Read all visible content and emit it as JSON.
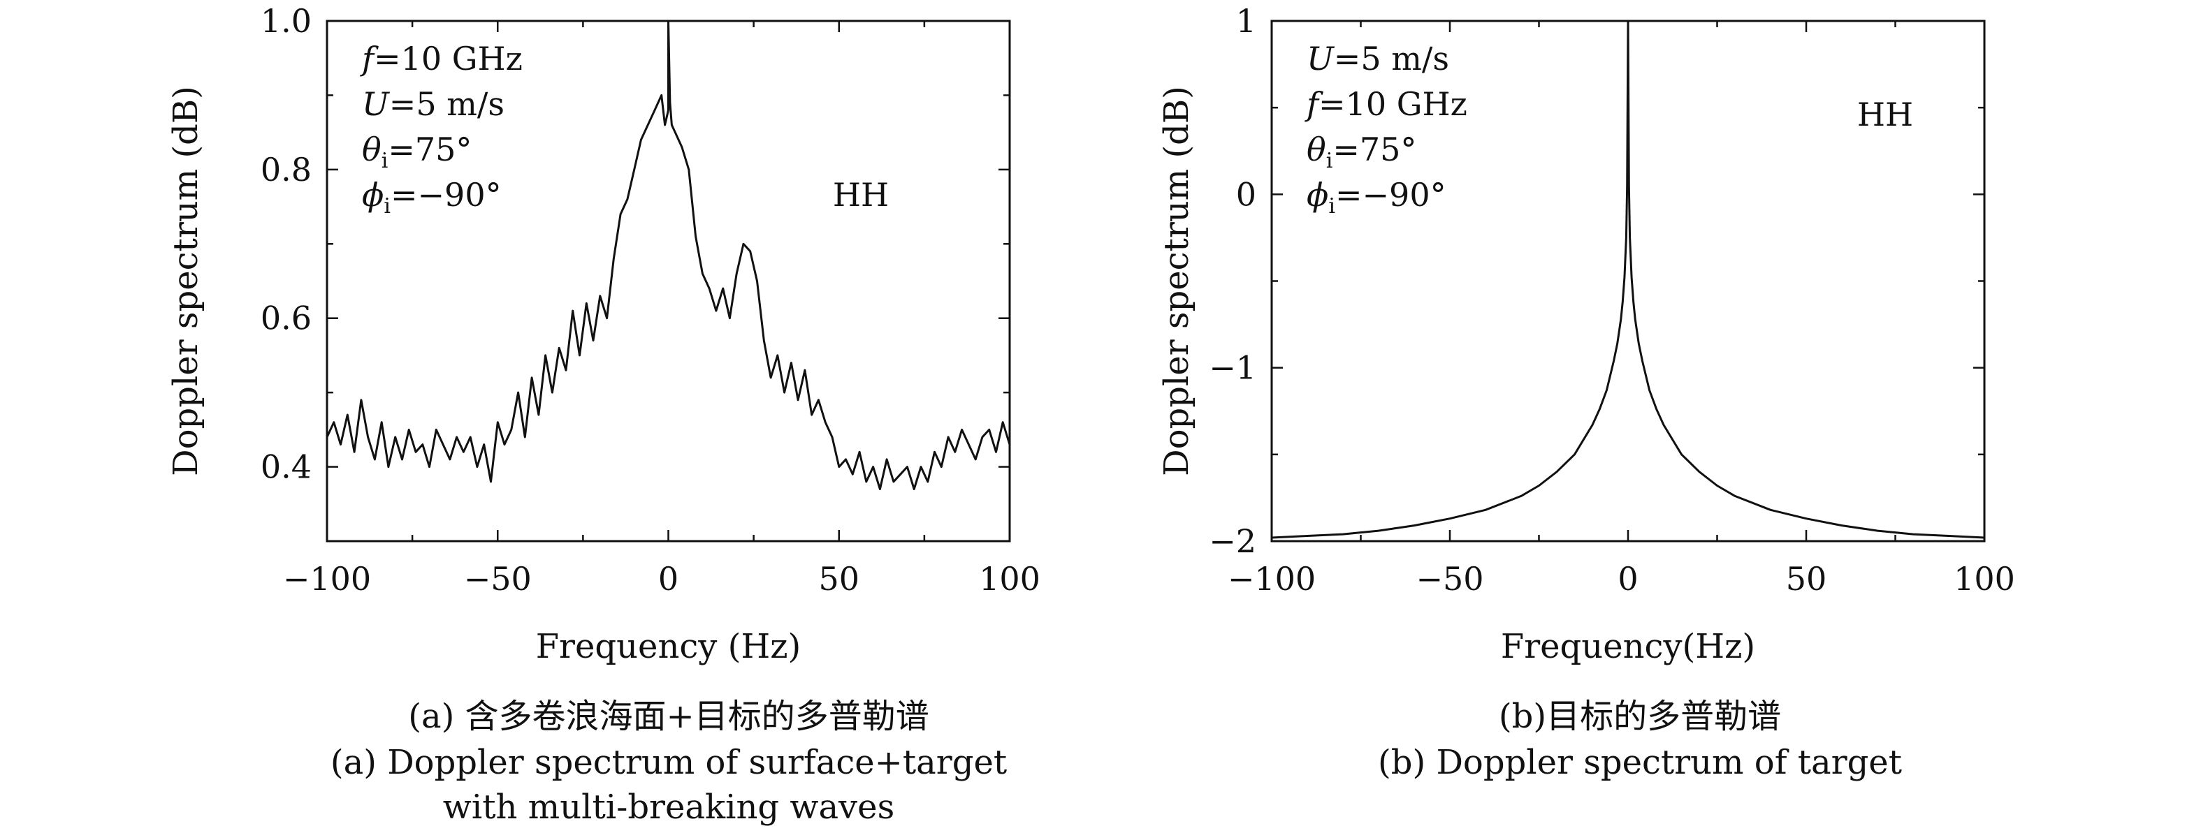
{
  "chart_data": [
    {
      "type": "line",
      "id": "a",
      "xlabel": "Frequency (Hz)",
      "ylabel": "Doppler spectrum (dB)",
      "xlim": [
        -100,
        100
      ],
      "ylim": [
        0.3,
        1.0
      ],
      "xticks": [
        "−100",
        "−50",
        "0",
        "50",
        "100"
      ],
      "xtick_values": [
        -100,
        -50,
        0,
        50,
        100
      ],
      "yticks": [
        "0.4",
        "0.6",
        "0.8",
        "1.0"
      ],
      "ytick_values": [
        0.4,
        0.6,
        0.8,
        1.0
      ],
      "annotations": [
        {
          "sym": "f",
          "sub": "",
          "rest": "=10 GHz"
        },
        {
          "sym": "U",
          "sub": "",
          "rest": "=5 m/s"
        },
        {
          "sym": "θ",
          "sub": "i",
          "rest": "=75°"
        },
        {
          "sym": "ϕ",
          "sub": "i",
          "rest": "=−90°"
        }
      ],
      "pol_label": "HH",
      "caption_cn": "(a) 含多卷浪海面+目标的多普勒谱",
      "caption_en1": "(a) Doppler spectrum of surface+target",
      "caption_en2": "with multi-breaking waves",
      "x": [
        -100,
        -98,
        -96,
        -94,
        -92,
        -90,
        -88,
        -86,
        -84,
        -82,
        -80,
        -78,
        -76,
        -74,
        -72,
        -70,
        -68,
        -66,
        -64,
        -62,
        -60,
        -58,
        -56,
        -54,
        -52,
        -50,
        -48,
        -46,
        -44,
        -42,
        -40,
        -38,
        -36,
        -34,
        -32,
        -30,
        -28,
        -26,
        -24,
        -22,
        -20,
        -18,
        -16,
        -14,
        -12,
        -10,
        -8,
        -6,
        -4,
        -2,
        -1,
        0,
        0,
        0.5,
        1,
        2,
        4,
        6,
        8,
        10,
        12,
        14,
        16,
        18,
        20,
        22,
        24,
        26,
        28,
        30,
        32,
        34,
        36,
        38,
        40,
        42,
        44,
        46,
        48,
        50,
        52,
        54,
        56,
        58,
        60,
        62,
        64,
        66,
        68,
        70,
        72,
        74,
        76,
        78,
        80,
        82,
        84,
        86,
        88,
        90,
        92,
        94,
        96,
        98,
        100
      ],
      "y": [
        0.44,
        0.46,
        0.43,
        0.47,
        0.42,
        0.49,
        0.44,
        0.41,
        0.46,
        0.4,
        0.44,
        0.41,
        0.45,
        0.42,
        0.43,
        0.4,
        0.45,
        0.43,
        0.41,
        0.44,
        0.42,
        0.44,
        0.4,
        0.43,
        0.38,
        0.46,
        0.43,
        0.45,
        0.5,
        0.44,
        0.52,
        0.47,
        0.55,
        0.5,
        0.56,
        0.53,
        0.61,
        0.55,
        0.62,
        0.57,
        0.63,
        0.6,
        0.68,
        0.74,
        0.76,
        0.8,
        0.84,
        0.86,
        0.88,
        0.9,
        0.86,
        0.88,
        1.0,
        0.89,
        0.86,
        0.85,
        0.83,
        0.8,
        0.71,
        0.66,
        0.64,
        0.61,
        0.64,
        0.6,
        0.66,
        0.7,
        0.69,
        0.65,
        0.57,
        0.52,
        0.55,
        0.5,
        0.54,
        0.49,
        0.53,
        0.47,
        0.49,
        0.46,
        0.44,
        0.4,
        0.41,
        0.39,
        0.42,
        0.38,
        0.4,
        0.37,
        0.41,
        0.38,
        0.39,
        0.4,
        0.37,
        0.4,
        0.38,
        0.42,
        0.4,
        0.44,
        0.42,
        0.45,
        0.43,
        0.41,
        0.44,
        0.45,
        0.42,
        0.46,
        0.43
      ]
    },
    {
      "type": "line",
      "id": "b",
      "xlabel": "Frequency(Hz)",
      "ylabel": "Doppler spectrum (dB)",
      "xlim": [
        -100,
        100
      ],
      "ylim": [
        -2.0,
        1.0
      ],
      "xticks": [
        "−100",
        "−50",
        "0",
        "50",
        "100"
      ],
      "xtick_values": [
        -100,
        -50,
        0,
        50,
        100
      ],
      "yticks": [
        "−2",
        "−1",
        "0",
        "1"
      ],
      "ytick_values": [
        -2,
        -1,
        0,
        1
      ],
      "annotations": [
        {
          "sym": "U",
          "sub": "",
          "rest": "=5 m/s"
        },
        {
          "sym": "f",
          "sub": "",
          "rest": "=10 GHz"
        },
        {
          "sym": "θ",
          "sub": "i",
          "rest": "=75°"
        },
        {
          "sym": "ϕ",
          "sub": "i",
          "rest": "=−90°"
        }
      ],
      "pol_label": "HH",
      "caption_cn": "(b)目标的多普勒谱",
      "caption_en1": "(b) Doppler spectrum of target",
      "x": [
        -100,
        -90,
        -80,
        -70,
        -60,
        -50,
        -40,
        -30,
        -25,
        -20,
        -15,
        -10,
        -8,
        -6,
        -4,
        -3,
        -2,
        -1.5,
        -1,
        -0.5,
        -0.25,
        0,
        0.25,
        0.5,
        1,
        1.5,
        2,
        3,
        4,
        6,
        8,
        10,
        15,
        20,
        25,
        30,
        40,
        50,
        60,
        70,
        80,
        90,
        100
      ],
      "y": [
        -1.98,
        -1.97,
        -1.96,
        -1.94,
        -1.91,
        -1.87,
        -1.82,
        -1.74,
        -1.68,
        -1.6,
        -1.5,
        -1.33,
        -1.24,
        -1.13,
        -0.96,
        -0.86,
        -0.72,
        -0.62,
        -0.48,
        -0.25,
        0.05,
        1.0,
        0.05,
        -0.25,
        -0.48,
        -0.62,
        -0.72,
        -0.86,
        -0.96,
        -1.13,
        -1.24,
        -1.33,
        -1.5,
        -1.6,
        -1.68,
        -1.74,
        -1.82,
        -1.87,
        -1.91,
        -1.94,
        -1.96,
        -1.97,
        -1.98
      ]
    }
  ]
}
